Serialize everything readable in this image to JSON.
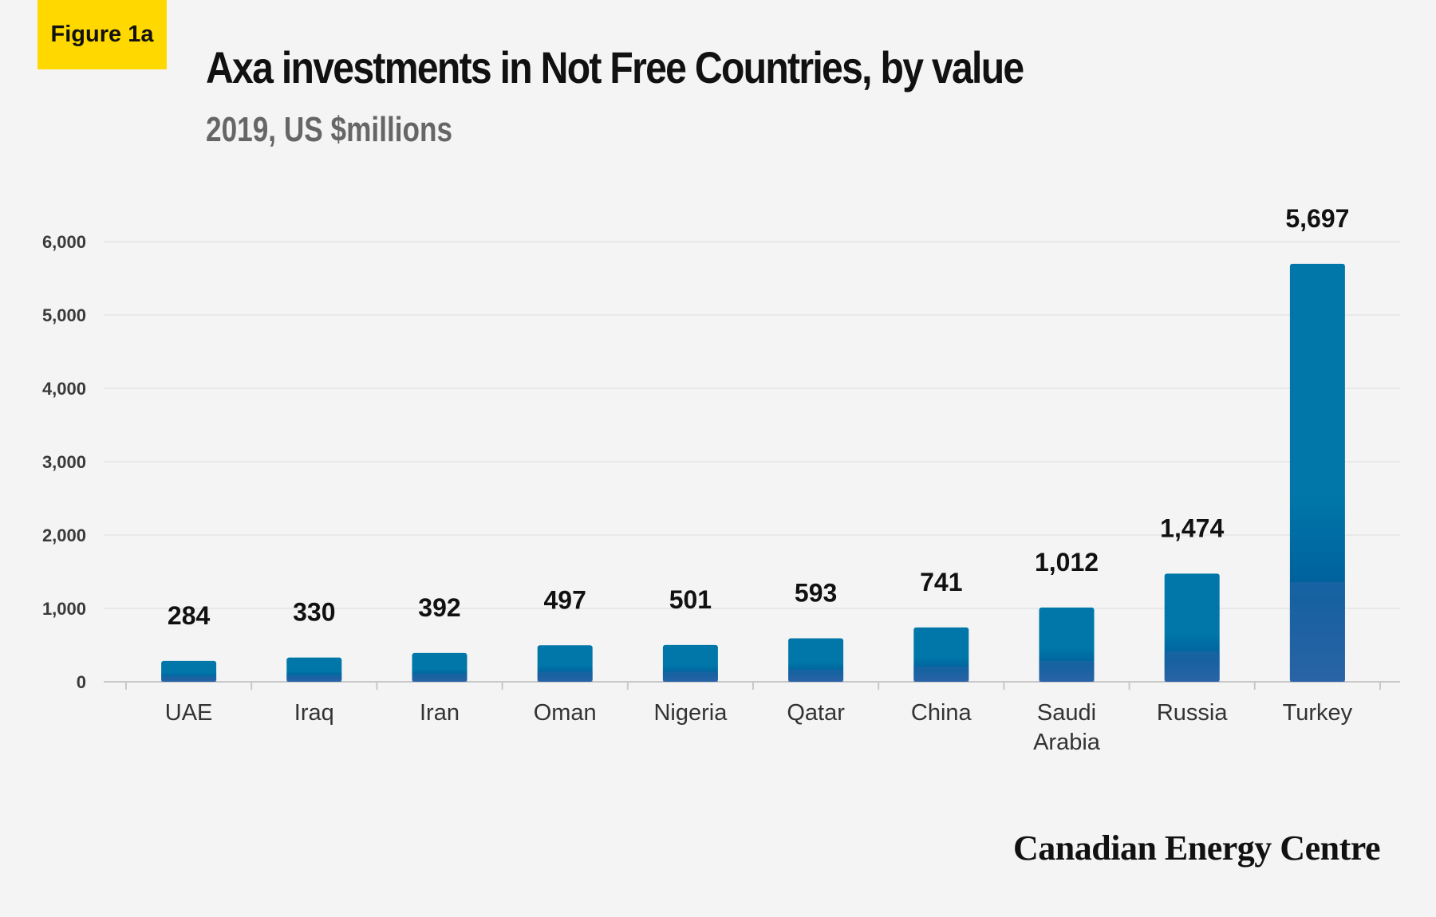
{
  "badge": {
    "label": "Figure 1a",
    "color": "#ffd800"
  },
  "title": "Axa investments in Not Free Countries, by value",
  "subtitle": "2019, US $millions",
  "brand": "Canadian Energy Centre",
  "chart_data": {
    "type": "bar",
    "title": "Axa investments in Not Free Countries, by value",
    "subtitle": "2019, US $millions",
    "xlabel": "",
    "ylabel": "",
    "ylim": [
      0,
      6000
    ],
    "yticks": [
      0,
      1000,
      2000,
      3000,
      4000,
      5000,
      6000
    ],
    "ytick_labels": [
      "0",
      "1,000",
      "2,000",
      "3,000",
      "4,000",
      "5,000",
      "6,000"
    ],
    "grid": true,
    "legend": "none",
    "categories": [
      [
        "UAE"
      ],
      [
        "Iraq"
      ],
      [
        "Iran"
      ],
      [
        "Oman"
      ],
      [
        "Nigeria"
      ],
      [
        "Qatar"
      ],
      [
        "China"
      ],
      [
        "Saudi",
        "Arabia"
      ],
      [
        "Russia"
      ],
      [
        "Turkey"
      ]
    ],
    "values": [
      284,
      330,
      392,
      497,
      501,
      593,
      741,
      1012,
      1474,
      5697
    ],
    "value_labels": [
      "284",
      "330",
      "392",
      "497",
      "501",
      "593",
      "741",
      "1,012",
      "1,474",
      "5,697"
    ],
    "bar_color_top": "#0077a8",
    "bar_color_mid": "#005e9b",
    "bar_color_base": "#2a64a6"
  }
}
